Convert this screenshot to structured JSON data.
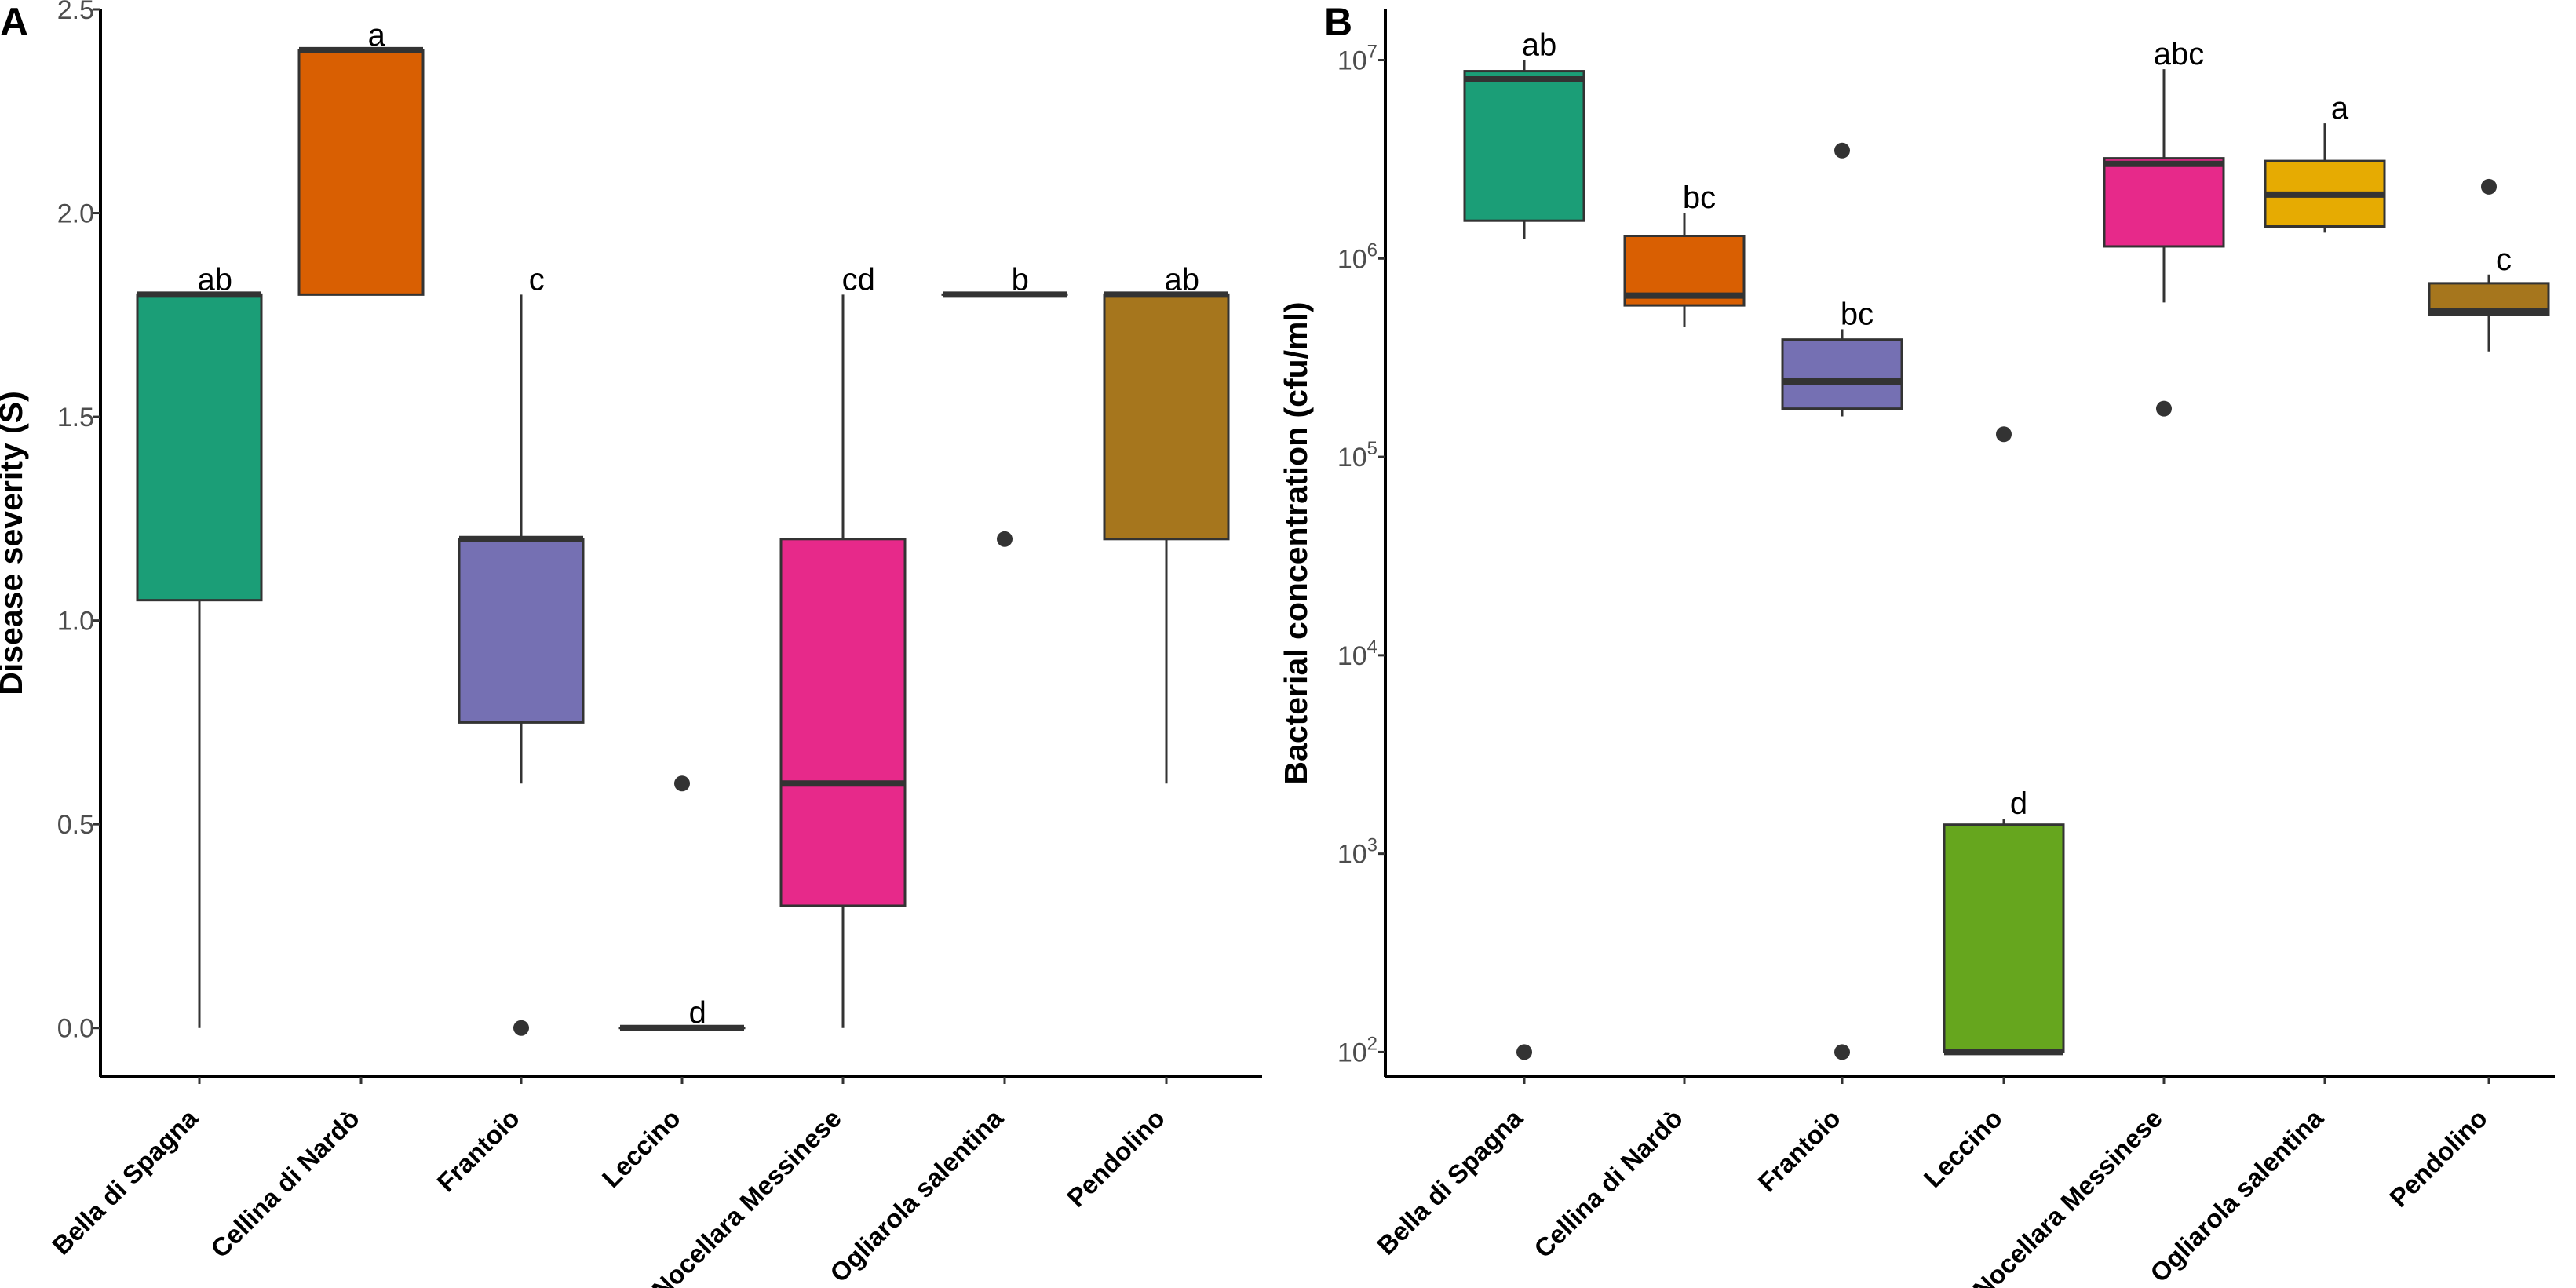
{
  "chart_data": [
    {
      "panel": "A",
      "type": "box",
      "ylabel": "Disease severity (S)",
      "xlabel": "",
      "yscale": "linear",
      "ylim": [
        -0.12,
        2.5
      ],
      "yticks": [
        0.0,
        0.5,
        1.0,
        1.5,
        2.0,
        2.5
      ],
      "ytick_labels": [
        "0.0",
        "0.5",
        "1.0",
        "1.5",
        "2.0",
        "2.5"
      ],
      "categories": [
        "Bella di Spagna",
        "Cellina di Nardò",
        "Frantoio",
        "Leccino",
        "Nocellara Messinese",
        "Ogliarola salentina",
        "Pendolino"
      ],
      "boxes": [
        {
          "name": "Bella di Spagna",
          "color": "#1b9e77",
          "low": 0.0,
          "q1": 1.05,
          "median": 1.8,
          "q3": 1.8,
          "high": 1.8,
          "outliers": [],
          "letter": "ab"
        },
        {
          "name": "Cellina di Nardò",
          "color": "#d95f02",
          "low": 1.8,
          "q1": 1.8,
          "median": 2.4,
          "q3": 2.4,
          "high": 2.4,
          "outliers": [],
          "letter": "a"
        },
        {
          "name": "Frantoio",
          "color": "#7570b3",
          "low": 0.6,
          "q1": 0.75,
          "median": 1.2,
          "q3": 1.2,
          "high": 1.8,
          "outliers": [
            0.0
          ],
          "letter": "c"
        },
        {
          "name": "Leccino",
          "color": "#e7298a",
          "low": 0.0,
          "q1": 0.0,
          "median": 0.0,
          "q3": 0.0,
          "high": 0.0,
          "outliers": [
            0.6
          ],
          "letter": "d"
        },
        {
          "name": "Nocellara Messinese",
          "color": "#e7298a",
          "low": 0.0,
          "q1": 0.3,
          "median": 0.6,
          "q3": 1.2,
          "high": 1.8,
          "outliers": [],
          "letter": "cd"
        },
        {
          "name": "Ogliarola salentina",
          "color": "#e6ab02",
          "low": 1.8,
          "q1": 1.8,
          "median": 1.8,
          "q3": 1.8,
          "high": 1.8,
          "outliers": [
            1.2
          ],
          "letter": "b"
        },
        {
          "name": "Pendolino",
          "color": "#a6761d",
          "low": 0.6,
          "q1": 1.2,
          "median": 1.8,
          "q3": 1.8,
          "high": 1.8,
          "outliers": [],
          "letter": "ab"
        }
      ]
    },
    {
      "panel": "B",
      "type": "box",
      "ylabel": "Bacterial concentration (cfu/ml)",
      "xlabel": "",
      "yscale": "log10",
      "ylim": [
        75,
        18000000
      ],
      "yticks": [
        100,
        1000,
        10000,
        100000,
        1000000,
        10000000
      ],
      "ytick_labels": [
        {
          "base": "10",
          "exp": "2"
        },
        {
          "base": "10",
          "exp": "3"
        },
        {
          "base": "10",
          "exp": "4"
        },
        {
          "base": "10",
          "exp": "5"
        },
        {
          "base": "10",
          "exp": "6"
        },
        {
          "base": "10",
          "exp": "7"
        }
      ],
      "categories": [
        "Bella di Spagna",
        "Cellina di Nardò",
        "Frantoio",
        "Leccino",
        "Nocellara Messinese",
        "Ogliarola salentina",
        "Pendolino"
      ],
      "boxes": [
        {
          "name": "Bella di Spagna",
          "color": "#1b9e77",
          "low": 1250000,
          "q1": 1550000,
          "median": 8000000,
          "q3": 8800000,
          "high": 10000000,
          "outliers": [
            100
          ],
          "letter": "ab"
        },
        {
          "name": "Cellina di Nardò",
          "color": "#d95f02",
          "low": 450000,
          "q1": 580000,
          "median": 650000,
          "q3": 1300000,
          "high": 1700000,
          "outliers": [],
          "letter": "bc"
        },
        {
          "name": "Frantoio",
          "color": "#7570b3",
          "low": 160000,
          "q1": 175000,
          "median": 240000,
          "q3": 390000,
          "high": 440000,
          "outliers": [
            100,
            3500000
          ],
          "letter": "bc"
        },
        {
          "name": "Leccino",
          "color": "#66a61e",
          "low": 100,
          "q1": 100,
          "median": 100,
          "q3": 1400,
          "high": 1500,
          "outliers": [
            130000
          ],
          "letter": "d"
        },
        {
          "name": "Nocellara Messinese",
          "color": "#e7298a",
          "low": 600000,
          "q1": 1150000,
          "median": 3000000,
          "q3": 3200000,
          "high": 9000000,
          "outliers": [
            175000
          ],
          "letter": "abc"
        },
        {
          "name": "Ogliarola salentina",
          "color": "#e6ab02",
          "low": 1350000,
          "q1": 1450000,
          "median": 2100000,
          "q3": 3100000,
          "high": 4800000,
          "outliers": [],
          "letter": "a"
        },
        {
          "name": "Pendolino",
          "color": "#a6761d",
          "low": 340000,
          "q1": 520000,
          "median": 540000,
          "q3": 750000,
          "high": 830000,
          "outliers": [
            2300000
          ],
          "letter": "c"
        }
      ]
    }
  ]
}
